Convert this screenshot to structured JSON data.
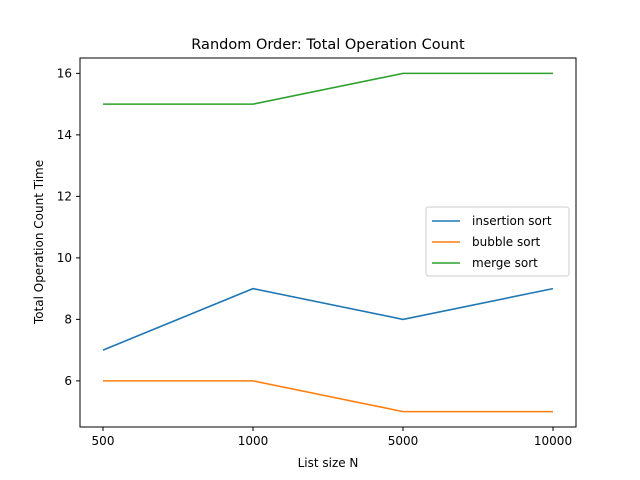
{
  "chart_data": {
    "type": "line",
    "title": "Random Order: Total Operation Count",
    "xlabel": "List size N",
    "ylabel": "Total Operation Count Time",
    "categories": [
      "500",
      "1000",
      "5000",
      "10000"
    ],
    "ylim": [
      4.5,
      16.5
    ],
    "yticks": [
      6,
      8,
      10,
      12,
      14,
      16
    ],
    "grid": false,
    "legend_position": "center-right",
    "series": [
      {
        "name": "insertion sort",
        "color": "#1f77b4",
        "values": [
          7,
          9,
          8,
          9
        ]
      },
      {
        "name": "bubble sort",
        "color": "#ff7f0e",
        "values": [
          6,
          6,
          5,
          5
        ]
      },
      {
        "name": "merge sort",
        "color": "#2ca02c",
        "values": [
          15,
          15,
          16,
          16
        ]
      }
    ]
  }
}
